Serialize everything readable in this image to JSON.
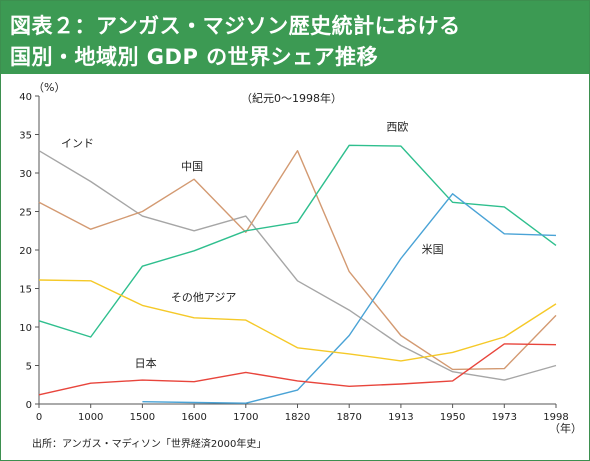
{
  "header": {
    "title_line1": "図表２：アンガス・マジソン歴史統計における",
    "title_line2": "国別・地域別 GDP の世界シェア推移"
  },
  "source_note": "出所：アンガス・マディソン「世界経済2000年史」",
  "colors": {
    "header_bg": "#3c9a53",
    "india": "#a6a6a6",
    "china": "#d39a72",
    "west_europe": "#2fbf8e",
    "usa": "#4aa3d6",
    "other_asia": "#f5c928",
    "japan": "#e8453c"
  },
  "chart_data": {
    "type": "line",
    "title": "（紀元0～1998年）",
    "xlabel": "（年）",
    "ylabel": "（%）",
    "ylim": [
      0,
      40
    ],
    "yticks": [
      "0",
      "5",
      "10",
      "15",
      "20",
      "25",
      "30",
      "35",
      "40"
    ],
    "categories": [
      "0",
      "1000",
      "1500",
      "1600",
      "1700",
      "1820",
      "1870",
      "1913",
      "1950",
      "1973",
      "1998"
    ],
    "grid": false,
    "series": [
      {
        "name": "インド",
        "color_key": "india",
        "values": [
          32.9,
          28.9,
          24.4,
          22.5,
          24.4,
          16.0,
          12.2,
          7.6,
          4.2,
          3.1,
          5.0
        ]
      },
      {
        "name": "中国",
        "color_key": "china",
        "values": [
          26.2,
          22.7,
          25.0,
          29.2,
          22.3,
          32.9,
          17.2,
          8.9,
          4.5,
          4.6,
          11.5
        ]
      },
      {
        "name": "西欧",
        "color_key": "west_europe",
        "values": [
          10.8,
          8.7,
          17.9,
          19.9,
          22.5,
          23.6,
          33.6,
          33.5,
          26.2,
          25.6,
          20.6
        ]
      },
      {
        "name": "米国",
        "color_key": "usa",
        "values": [
          null,
          null,
          0.3,
          0.2,
          0.1,
          1.8,
          8.9,
          18.9,
          27.3,
          22.1,
          21.9
        ]
      },
      {
        "name": "その他アジア",
        "color_key": "other_asia",
        "values": [
          16.1,
          16.0,
          12.8,
          11.2,
          10.9,
          7.3,
          6.5,
          5.6,
          6.7,
          8.7,
          13.0
        ]
      },
      {
        "name": "日本",
        "color_key": "japan",
        "values": [
          1.2,
          2.7,
          3.1,
          2.9,
          4.1,
          3.0,
          2.3,
          2.6,
          3.0,
          7.8,
          7.7
        ]
      }
    ]
  }
}
